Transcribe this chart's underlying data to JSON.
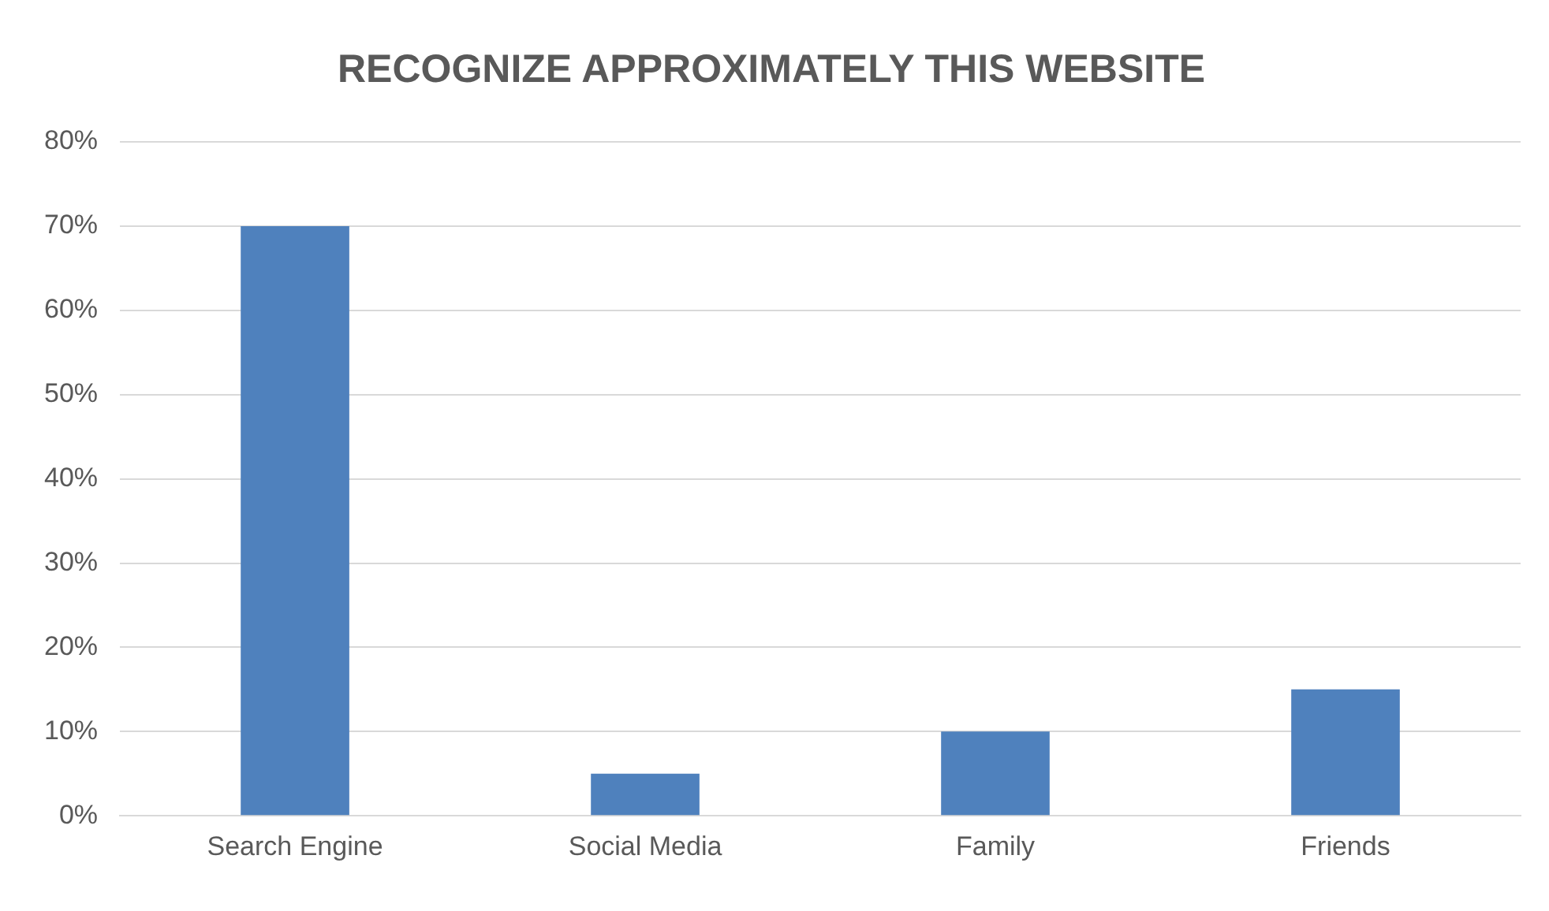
{
  "chart_data": {
    "type": "bar",
    "title": "RECOGNIZE APPROXIMATELY THIS WEBSITE",
    "categories": [
      "Search Engine",
      "Social Media",
      "Family",
      "Friends"
    ],
    "values": [
      70,
      5,
      10,
      15
    ],
    "color": "#4f81bd",
    "ylim": [
      0,
      80
    ],
    "yticks": [
      {
        "value": 0,
        "label": "0%"
      },
      {
        "value": 10,
        "label": "10%"
      },
      {
        "value": 20,
        "label": "20%"
      },
      {
        "value": 30,
        "label": "30%"
      },
      {
        "value": 40,
        "label": "40%"
      },
      {
        "value": 50,
        "label": "50%"
      },
      {
        "value": 60,
        "label": "60%"
      },
      {
        "value": 70,
        "label": "70%"
      },
      {
        "value": 80,
        "label": "80%"
      }
    ],
    "grid": "y",
    "legend": false
  }
}
